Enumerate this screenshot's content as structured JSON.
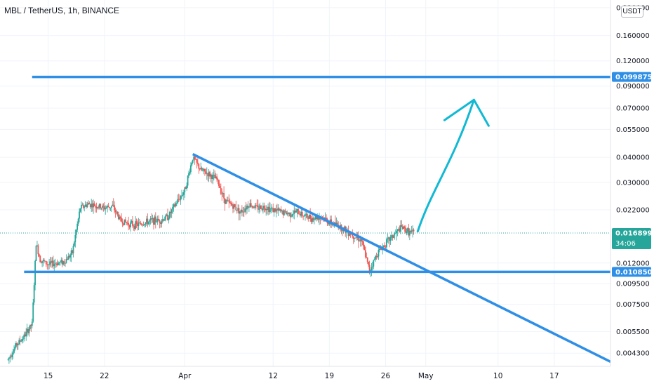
{
  "header": {
    "symbol_title": "MBL / TetherUS, 1h, BINANCE",
    "currency_badge": "USDT"
  },
  "chart_data": {
    "type": "candlestick",
    "title": "MBL / TetherUS, 1h, BINANCE",
    "y_scale": "log",
    "ylim": [
      0.0037,
      0.24
    ],
    "y_ticks": [
      {
        "value": 0.22,
        "label": "0.220000"
      },
      {
        "value": 0.16,
        "label": "0.160000"
      },
      {
        "value": 0.12,
        "label": "0.120000"
      },
      {
        "value": 0.09,
        "label": "0.090000"
      },
      {
        "value": 0.07,
        "label": "0.070000"
      },
      {
        "value": 0.055,
        "label": "0.055000"
      },
      {
        "value": 0.04,
        "label": "0.040000"
      },
      {
        "value": 0.03,
        "label": "0.030000"
      },
      {
        "value": 0.022,
        "label": "0.022000"
      },
      {
        "value": 0.012,
        "label": "0.012000"
      },
      {
        "value": 0.0095,
        "label": "0.009500"
      },
      {
        "value": 0.0075,
        "label": "0.007500"
      },
      {
        "value": 0.0055,
        "label": "0.005500"
      },
      {
        "value": 0.0043,
        "label": "0.004300"
      }
    ],
    "xlim": [
      "2021-03-09",
      "2021-05-24"
    ],
    "x_ticks": [
      {
        "date": "2021-03-15",
        "label": "15"
      },
      {
        "date": "2021-03-22",
        "label": "22"
      },
      {
        "date": "2021-04-01",
        "label": "Apr"
      },
      {
        "date": "2021-04-12",
        "label": "12"
      },
      {
        "date": "2021-04-19",
        "label": "19"
      },
      {
        "date": "2021-04-26",
        "label": "26"
      },
      {
        "date": "2021-05-01",
        "label": "May"
      },
      {
        "date": "2021-05-10",
        "label": "10"
      },
      {
        "date": "2021-05-17",
        "label": "17"
      }
    ],
    "price_path": [
      [
        "2021-03-10",
        0.004
      ],
      [
        "2021-03-11",
        0.0047
      ],
      [
        "2021-03-12",
        0.0052
      ],
      [
        "2021-03-13",
        0.006
      ],
      [
        "2021-03-13 12:00",
        0.015
      ],
      [
        "2021-03-14",
        0.0125
      ],
      [
        "2021-03-15",
        0.0118
      ],
      [
        "2021-03-16",
        0.012
      ],
      [
        "2021-03-17",
        0.0122
      ],
      [
        "2021-03-18",
        0.0135
      ],
      [
        "2021-03-19",
        0.0225
      ],
      [
        "2021-03-20",
        0.0235
      ],
      [
        "2021-03-21",
        0.023
      ],
      [
        "2021-03-22",
        0.0225
      ],
      [
        "2021-03-23",
        0.023
      ],
      [
        "2021-03-24",
        0.0195
      ],
      [
        "2021-03-25",
        0.0188
      ],
      [
        "2021-03-26",
        0.0185
      ],
      [
        "2021-03-27",
        0.019
      ],
      [
        "2021-03-28",
        0.0195
      ],
      [
        "2021-03-29",
        0.0195
      ],
      [
        "2021-03-30",
        0.0205
      ],
      [
        "2021-03-31",
        0.024
      ],
      [
        "2021-04-01",
        0.0275
      ],
      [
        "2021-04-02",
        0.04
      ],
      [
        "2021-04-03",
        0.0345
      ],
      [
        "2021-04-04",
        0.033
      ],
      [
        "2021-04-05",
        0.031
      ],
      [
        "2021-04-06",
        0.0245
      ],
      [
        "2021-04-07",
        0.023
      ],
      [
        "2021-04-08",
        0.0215
      ],
      [
        "2021-04-09",
        0.0235
      ],
      [
        "2021-04-10",
        0.0225
      ],
      [
        "2021-04-11",
        0.0228
      ],
      [
        "2021-04-12",
        0.022
      ],
      [
        "2021-04-13",
        0.0215
      ],
      [
        "2021-04-14",
        0.021
      ],
      [
        "2021-04-15",
        0.0215
      ],
      [
        "2021-04-16",
        0.0205
      ],
      [
        "2021-04-17",
        0.02
      ],
      [
        "2021-04-18",
        0.0205
      ],
      [
        "2021-04-19",
        0.019
      ],
      [
        "2021-04-20",
        0.0185
      ],
      [
        "2021-04-21",
        0.0175
      ],
      [
        "2021-04-22",
        0.0165
      ],
      [
        "2021-04-23",
        0.0155
      ],
      [
        "2021-04-24",
        0.011
      ],
      [
        "2021-04-25",
        0.0135
      ],
      [
        "2021-04-26",
        0.015
      ],
      [
        "2021-04-27",
        0.0165
      ],
      [
        "2021-04-28",
        0.018
      ],
      [
        "2021-04-29",
        0.017
      ],
      [
        "2021-04-29 12:00",
        0.0169
      ]
    ],
    "last_price": {
      "value": 0.016899,
      "label": "0.016899",
      "countdown": "34:06"
    },
    "annotations": {
      "resistance": {
        "value": 0.099875,
        "label": "0.099875",
        "from": "2021-03-13",
        "color": "#2f8fe6"
      },
      "support": {
        "value": 0.01085,
        "label": "0.010850",
        "from": "2021-03-12",
        "color": "#2f8fe6"
      },
      "trendline": {
        "from": [
          "2021-04-02",
          0.0415
        ],
        "to": [
          "2021-05-24",
          0.0039
        ],
        "color": "#2f8fe6"
      },
      "arrow_target": {
        "from": [
          "2021-04-30",
          0.0172
        ],
        "to": [
          "2021-05-07",
          0.077
        ],
        "color": "#12b9d3"
      }
    },
    "colors": {
      "up": "#26a69a",
      "down": "#ef5350",
      "last_price": "#26a69a",
      "level_tag": "#2f8fe6"
    },
    "grid": true
  }
}
